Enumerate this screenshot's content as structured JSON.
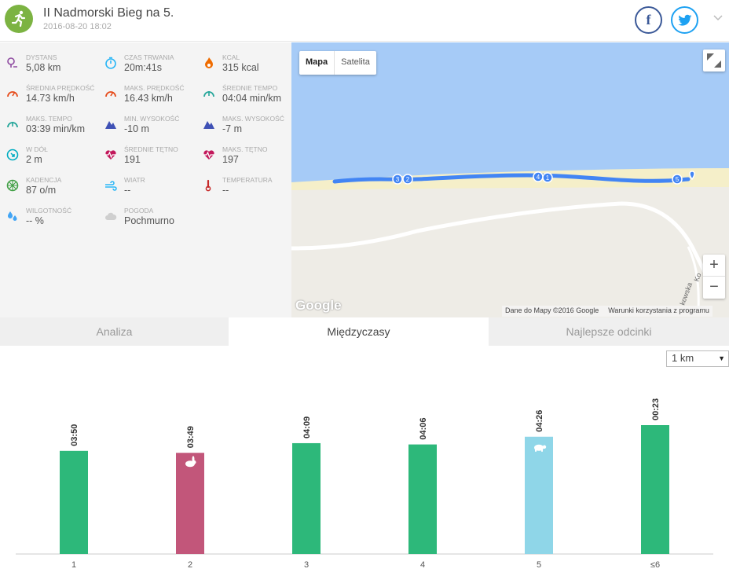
{
  "header": {
    "title": "II Nadmorski Bieg na 5.",
    "date": "2016-08-20 18:02",
    "facebook_label": "f",
    "logo_icon": "running-person-icon",
    "colors": {
      "logo": "#7cb342",
      "facebook": "#3b5998",
      "twitter": "#1da1f2"
    }
  },
  "stats": [
    {
      "label": "DYSTANS",
      "value": "5,08 km",
      "icon": "distance-pin-icon",
      "color": "#8e4aa0"
    },
    {
      "label": "CZAS TRWANIA",
      "value": "20m:41s",
      "icon": "stopwatch-icon",
      "color": "#29b6f6"
    },
    {
      "label": "KCAL",
      "value": "315 kcal",
      "icon": "flame-icon",
      "color": "#ef6c00"
    },
    {
      "label": "ŚREDNIA PRĘDKOŚĆ",
      "value": "14.73 km/h",
      "icon": "speedometer-icon",
      "color": "#e64a19"
    },
    {
      "label": "MAKS. PRĘDKOŚĆ",
      "value": "16.43 km/h",
      "icon": "speedometer-icon",
      "color": "#e64a19"
    },
    {
      "label": "ŚREDNIE TEMPO",
      "value": "04:04 min/km",
      "icon": "pace-gauge-icon",
      "color": "#26a69a"
    },
    {
      "label": "MAKS. TEMPO",
      "value": "03:39 min/km",
      "icon": "pace-gauge-icon",
      "color": "#26a69a"
    },
    {
      "label": "MIN. WYSOKOŚĆ",
      "value": "-10 m",
      "icon": "mountain-icon",
      "color": "#3f51b5"
    },
    {
      "label": "MAKS. WYSOKOŚĆ",
      "value": "-7 m",
      "icon": "mountain-icon",
      "color": "#3f51b5"
    },
    {
      "label": "W DÓŁ",
      "value": "2 m",
      "icon": "descent-icon",
      "color": "#00acc1"
    },
    {
      "label": "ŚREDNIE TĘTNO",
      "value": "191",
      "icon": "heart-rate-icon",
      "color": "#c2185b"
    },
    {
      "label": "MAKS. TĘTNO",
      "value": "197",
      "icon": "heart-rate-icon",
      "color": "#c2185b"
    },
    {
      "label": "KADENCJA",
      "value": "87 o/m",
      "icon": "cadence-wheel-icon",
      "color": "#43a047"
    },
    {
      "label": "WIATR",
      "value": "--",
      "icon": "wind-icon",
      "color": "#29b6f6"
    },
    {
      "label": "TEMPERATURA",
      "value": "--",
      "icon": "thermometer-icon",
      "color": "#c62828"
    },
    {
      "label": "WILGOTNOŚĆ",
      "value": "-- %",
      "icon": "humidity-drops-icon",
      "color": "#42a5f5"
    },
    {
      "label": "POGODA",
      "value": "Pochmurno",
      "icon": "cloud-icon",
      "color": "#cfcfcf"
    }
  ],
  "map": {
    "type_buttons": [
      "Mapa",
      "Satelita"
    ],
    "zoom_in": "+",
    "zoom_out": "−",
    "logo": "Google",
    "attribution": "Dane do Mapy ©2016 Google",
    "terms": "Warunki korzystania z programu",
    "street_label": "kowska",
    "street_label2": "Ko",
    "markers": [
      "3",
      "2",
      "4",
      "1",
      "5"
    ],
    "colors": {
      "sea": "#a6cbf7",
      "beach": "#f5efc9",
      "land": "#eeece6",
      "route": "#4285f4"
    }
  },
  "tabs": [
    {
      "label": "Analiza",
      "active": false
    },
    {
      "label": "Międzyczasy",
      "active": true
    },
    {
      "label": "Najlepsze odcinki",
      "active": false
    }
  ],
  "split_select": {
    "value": "1 km"
  },
  "chart_data": {
    "type": "bar",
    "categories": [
      "1",
      "2",
      "3",
      "4",
      "5",
      "≤6"
    ],
    "values": [
      "03:50",
      "03:49",
      "04:09",
      "04:06",
      "04:26",
      "00:23"
    ],
    "bar_fraction": [
      0.8,
      0.785,
      0.86,
      0.85,
      0.91,
      1.0
    ],
    "colors": [
      "#2db87a",
      "#c2567a",
      "#2db87a",
      "#2db87a",
      "#8fd6e8",
      "#2db87a"
    ],
    "markers": [
      "",
      "rabbit-icon",
      "",
      "",
      "turtle-icon",
      ""
    ]
  }
}
